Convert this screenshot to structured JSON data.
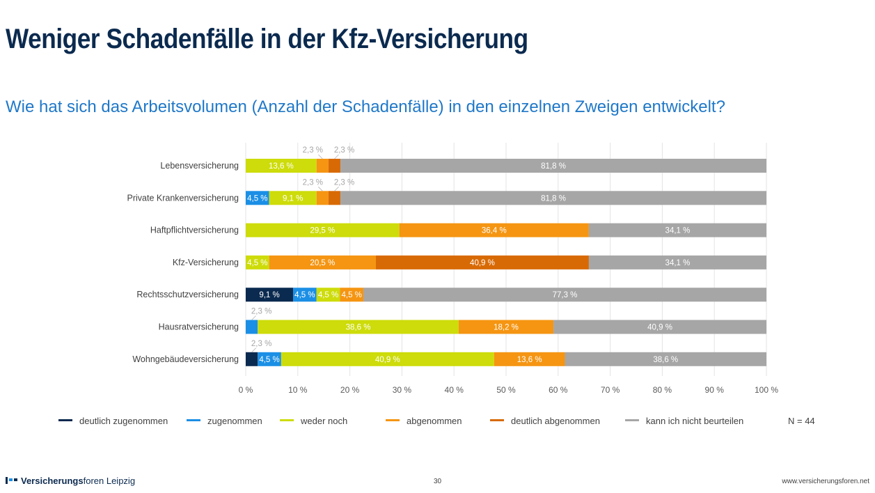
{
  "header": {
    "title": "Weniger Schadenfälle in der Kfz-Versicherung",
    "subtitle": "Wie hat sich das Arbeitsvolumen (Anzahl der Schadenfälle) in den einzelnen Zweigen entwickelt?"
  },
  "colors": {
    "deutlich_zugenommen": "#0b2a4f",
    "zugenommen": "#1b8fe5",
    "weder_noch": "#cddc0a",
    "abgenommen": "#f59512",
    "deutlich_abgenommen": "#d86a05",
    "kann_nicht_beurteilen": "#a6a6a6"
  },
  "chart_data": {
    "type": "bar",
    "orientation": "horizontal",
    "stacked": true,
    "categories": [
      "Lebensversicherung",
      "Private Krankenversicherung",
      "Haftpflichtversicherung",
      "Kfz-Versicherung",
      "Rechtsschutzversicherung",
      "Hausratversicherung",
      "Wohngebäudeversicherung"
    ],
    "series": [
      {
        "name": "deutlich zugenommen",
        "color": "#0b2a4f",
        "values": [
          0,
          0,
          0,
          0,
          9.1,
          0,
          2.3
        ],
        "labels": [
          "",
          "",
          "",
          "",
          "9,1 %",
          "",
          "2,3 %"
        ]
      },
      {
        "name": "zugenommen",
        "color": "#1b8fe5",
        "values": [
          0,
          4.5,
          0,
          0,
          4.5,
          2.3,
          4.5
        ],
        "labels": [
          "",
          "4,5 %",
          "",
          "",
          "4,5 %",
          "2,3 %",
          "4,5 %"
        ]
      },
      {
        "name": "weder noch",
        "color": "#cddc0a",
        "values": [
          13.6,
          9.1,
          29.5,
          4.5,
          4.5,
          38.6,
          40.9
        ],
        "labels": [
          "13,6 %",
          "9,1 %",
          "29,5 %",
          "4,5 %",
          "4,5 %",
          "38,6 %",
          "40,9 %"
        ]
      },
      {
        "name": "abgenommen",
        "color": "#f59512",
        "values": [
          2.3,
          2.3,
          36.4,
          20.5,
          4.5,
          18.2,
          13.6
        ],
        "labels": [
          "2,3 %",
          "2,3 %",
          "36,4 %",
          "20,5 %",
          "4,5 %",
          "18,2 %",
          "13,6 %"
        ]
      },
      {
        "name": "deutlich abgenommen",
        "color": "#d86a05",
        "values": [
          2.3,
          2.3,
          0,
          40.9,
          0,
          0,
          0
        ],
        "labels": [
          "2,3 %",
          "2,3 %",
          "",
          "40,9 %",
          "",
          "",
          ""
        ]
      },
      {
        "name": "kann ich nicht beurteilen",
        "color": "#a6a6a6",
        "values": [
          81.8,
          81.8,
          34.1,
          34.1,
          77.3,
          40.9,
          38.6
        ],
        "labels": [
          "81,8 %",
          "81,8 %",
          "34,1 %",
          "34,1 %",
          "77,3 %",
          "40,9 %",
          "38,6 %"
        ]
      }
    ],
    "xlim": [
      0,
      100
    ],
    "x_ticks": [
      "0 %",
      "10 %",
      "20 %",
      "30 %",
      "40 %",
      "50 %",
      "60 %",
      "70 %",
      "80 %",
      "90 %",
      "100 %"
    ],
    "grid": true,
    "legend_position": "bottom"
  },
  "legend": {
    "items": [
      "deutlich zugenommen",
      "zugenommen",
      "weder noch",
      "abgenommen",
      "deutlich abgenommen",
      "kann ich nicht beurteilen"
    ],
    "sample_size": "N = 44"
  },
  "footer": {
    "logo_bold": "Versicherungs",
    "logo_rest": "foren Leipzig",
    "page_number": "30",
    "url": "www.versicherungsforen.net"
  }
}
